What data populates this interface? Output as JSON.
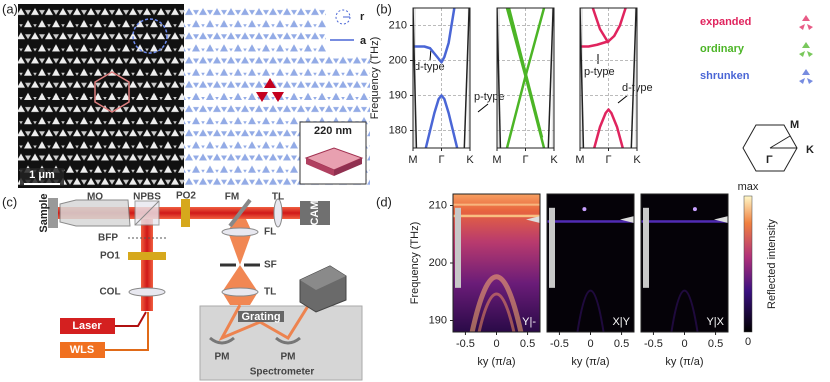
{
  "panel_labels": [
    "(a)",
    "(b)",
    "(c)",
    "(d)"
  ],
  "micrograph": {
    "r_label": "r",
    "a_label": "a",
    "scale_bar": "1 μm",
    "inset_label": "220 nm"
  },
  "setup": {
    "sample": "Sample",
    "mo": "MO",
    "npbs": "NPBS",
    "po2": "PO2",
    "fm": "FM",
    "tl_top": "TL",
    "cam": "CAM",
    "bfp": "BFP",
    "po1": "PO1",
    "col": "COL",
    "laser": "Laser",
    "wls": "WLS",
    "fl": "FL",
    "sf": "SF",
    "tl_side": "TL",
    "grating": "Grating",
    "pm_left": "PM",
    "pm_right": "PM",
    "spectrometer": "Spectrometer"
  },
  "band_legend": [
    {
      "name": "expanded",
      "color": "#e0245e"
    },
    {
      "name": "ordinary",
      "color": "#4cb526"
    },
    {
      "name": "shrunken",
      "color": "#4a66d6"
    }
  ],
  "brillouin_zone": {
    "m": "M",
    "k": "K",
    "gamma": "Γ"
  },
  "colorbar": {
    "max": "max",
    "min": "0",
    "label": "Reflected intensity"
  },
  "chart_data": [
    {
      "type": "line",
      "ylabel": "Frequency (THz)",
      "ylim": [
        175,
        215
      ],
      "yticks": [
        180,
        190,
        200,
        210
      ],
      "xlim": [
        0,
        2
      ],
      "xticks": [
        {
          "value": 0,
          "label": "M"
        },
        {
          "value": 1,
          "label": "Γ"
        },
        {
          "value": 2,
          "label": "K"
        }
      ],
      "grid": true,
      "annotations": [
        "d-type",
        "p-type"
      ],
      "series": [
        {
          "color": "#4a66d6",
          "x": [
            0,
            0.2,
            0.4,
            0.6,
            0.75,
            0.9,
            1.0,
            1.1,
            1.25,
            1.45
          ],
          "values": [
            204,
            204,
            204,
            203.5,
            202,
            200.5,
            199.5,
            201,
            205,
            215
          ]
        },
        {
          "color": "#4a66d6",
          "x": [
            0.45,
            0.6,
            0.75,
            0.9,
            1.0,
            1.1,
            1.25,
            1.4,
            1.55
          ],
          "values": [
            175,
            180,
            185,
            189,
            190,
            189,
            185,
            180,
            175
          ]
        },
        {
          "color": "#222222",
          "x": [
            0,
            0.12
          ],
          "values": [
            215,
            175
          ]
        },
        {
          "color": "#222222",
          "x": [
            1.8,
            1.97
          ],
          "values": [
            175,
            215
          ]
        }
      ]
    },
    {
      "type": "line",
      "xlim": [
        0,
        2
      ],
      "ylim": [
        175,
        215
      ],
      "xticks": [
        {
          "value": 0,
          "label": "M"
        },
        {
          "value": 1,
          "label": "Γ"
        },
        {
          "value": 2,
          "label": "K"
        }
      ],
      "grid": true,
      "series": [
        {
          "color": "#4cb526",
          "x": [
            0.35,
            1,
            1.65
          ],
          "values": [
            215,
            195.5,
            175
          ]
        },
        {
          "color": "#4cb526",
          "x": [
            0.35,
            1,
            1.65
          ],
          "values": [
            175,
            195.5,
            215
          ]
        },
        {
          "color": "#4cb526",
          "x": [
            0.42,
            1,
            1.58
          ],
          "values": [
            215,
            196.5,
            178
          ]
        },
        {
          "color": "#222222",
          "x": [
            0,
            0.12
          ],
          "values": [
            215,
            175
          ]
        },
        {
          "color": "#222222",
          "x": [
            1.8,
            1.97
          ],
          "values": [
            175,
            215
          ]
        }
      ]
    },
    {
      "type": "line",
      "xlim": [
        0,
        2
      ],
      "ylim": [
        175,
        215
      ],
      "xticks": [
        {
          "value": 0,
          "label": "M"
        },
        {
          "value": 1,
          "label": "Γ"
        },
        {
          "value": 2,
          "label": "K"
        }
      ],
      "grid": true,
      "annotations": [
        "p-type",
        "d-type"
      ],
      "series": [
        {
          "color": "#e0245e",
          "x": [
            0,
            0.3,
            0.6,
            0.8,
            1.0,
            1.2,
            1.4,
            1.6
          ],
          "values": [
            204,
            204,
            204.5,
            205,
            205.5,
            207,
            210,
            215
          ]
        },
        {
          "color": "#e0245e",
          "x": [
            0.45,
            0.7,
            1.0
          ],
          "values": [
            215,
            209,
            205
          ]
        },
        {
          "color": "#e0245e",
          "x": [
            0.5,
            0.7,
            0.9,
            1.0,
            1.1,
            1.3,
            1.5
          ],
          "values": [
            175,
            181,
            185,
            186,
            185,
            181,
            175
          ]
        },
        {
          "color": "#222222",
          "x": [
            0,
            0.12
          ],
          "values": [
            215,
            175
          ]
        },
        {
          "color": "#222222",
          "x": [
            1.8,
            1.97
          ],
          "values": [
            175,
            215
          ]
        }
      ]
    },
    {
      "type": "heatmap",
      "label": "Y|-",
      "xlabel": "ky (π/a)",
      "ylabel": "Frequency (THz)",
      "xlim": [
        -0.7,
        0.7
      ],
      "ylim": [
        188,
        212
      ],
      "xticks": [
        -0.5,
        0,
        0.5
      ],
      "yticks": [
        190,
        200,
        210
      ]
    },
    {
      "type": "heatmap",
      "label": "X|Y",
      "xlabel": "ky (π/a)",
      "xlim": [
        -0.7,
        0.7
      ],
      "ylim": [
        188,
        212
      ],
      "xticks": [
        -0.5,
        0,
        0.5
      ]
    },
    {
      "type": "heatmap",
      "label": "Y|X",
      "xlabel": "ky (π/a)",
      "xlim": [
        -0.7,
        0.7
      ],
      "ylim": [
        188,
        212
      ],
      "xticks": [
        -0.5,
        0,
        0.5
      ]
    }
  ]
}
